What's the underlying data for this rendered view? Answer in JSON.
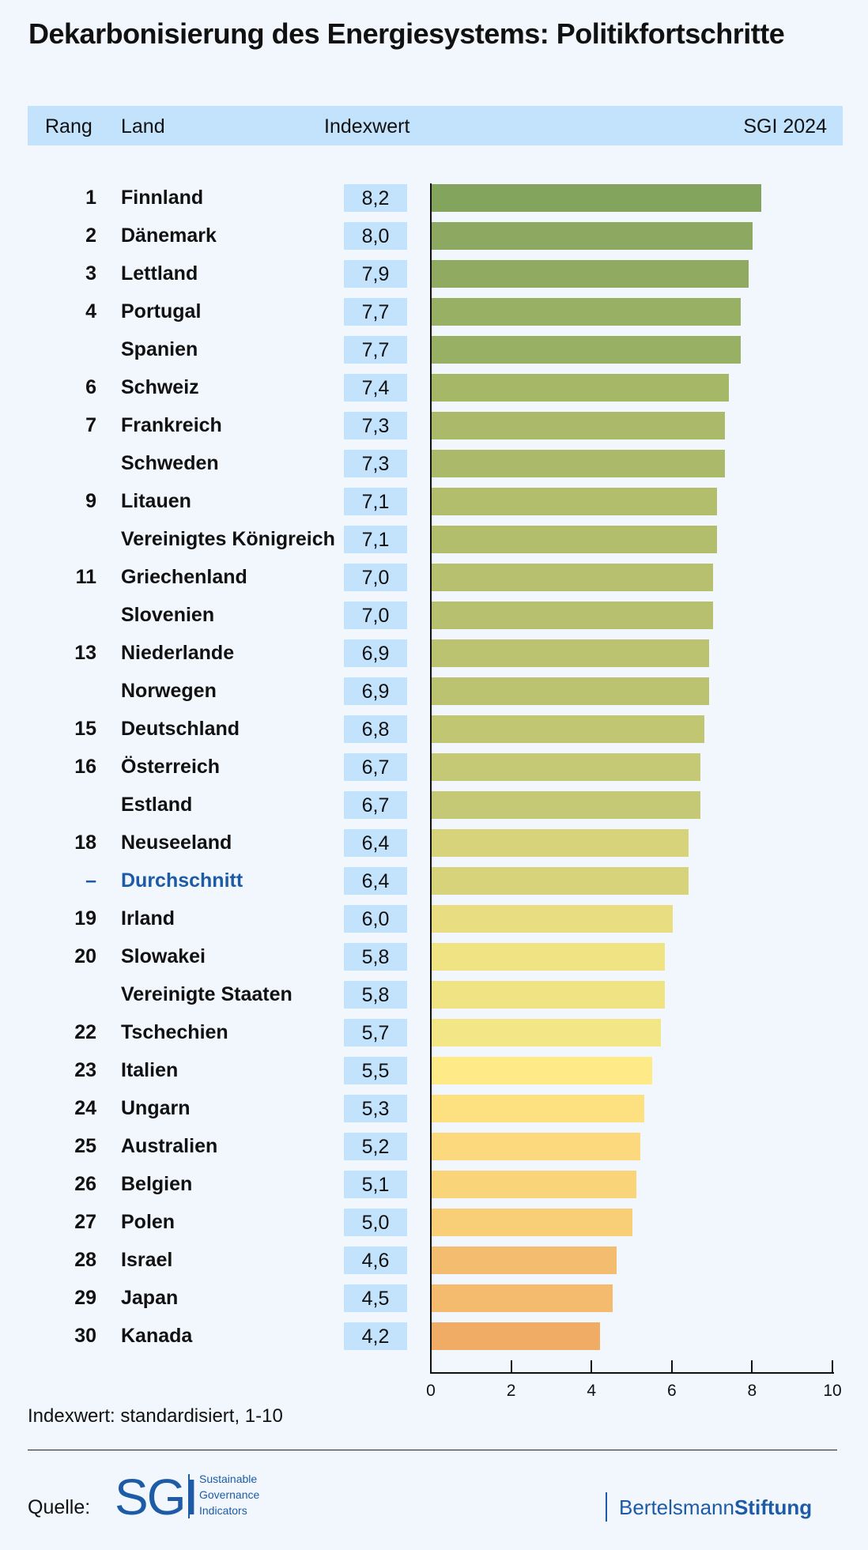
{
  "title": "Dekarbonisierung des Energiesystems: Politikfortschritte",
  "header": {
    "rank": "Rang",
    "land": "Land",
    "index": "Indexwert",
    "edition": "SGI 2024"
  },
  "chart_data": {
    "type": "bar",
    "orientation": "horizontal",
    "title": "Dekarbonisierung des Energiesystems: Politikfortschritte",
    "xlim": [
      0,
      10
    ],
    "xticks": [
      "0",
      "2",
      "4",
      "6",
      "8",
      "10"
    ],
    "note": "Indexwert: standardisiert, 1-10",
    "rows": [
      {
        "rank": "1",
        "name": "Finnland",
        "value": 8.2,
        "label": "8,2",
        "color": "#82a45c"
      },
      {
        "rank": "2",
        "name": "Dänemark",
        "value": 8.0,
        "label": "8,0",
        "color": "#8da860"
      },
      {
        "rank": "3",
        "name": "Lettland",
        "value": 7.9,
        "label": "7,9",
        "color": "#90aa61"
      },
      {
        "rank": "4",
        "name": "Portugal",
        "value": 7.7,
        "label": "7,7",
        "color": "#98b064"
      },
      {
        "rank": "",
        "name": "Spanien",
        "value": 7.7,
        "label": "7,7",
        "color": "#98b064"
      },
      {
        "rank": "6",
        "name": "Schweiz",
        "value": 7.4,
        "label": "7,4",
        "color": "#a6b868"
      },
      {
        "rank": "7",
        "name": "Frankreich",
        "value": 7.3,
        "label": "7,3",
        "color": "#abba6a"
      },
      {
        "rank": "",
        "name": "Schweden",
        "value": 7.3,
        "label": "7,3",
        "color": "#abba6a"
      },
      {
        "rank": "9",
        "name": "Litauen",
        "value": 7.1,
        "label": "7,1",
        "color": "#b3be6d"
      },
      {
        "rank": "",
        "name": "Vereinigtes Königreich",
        "value": 7.1,
        "label": "7,1",
        "color": "#b3be6d"
      },
      {
        "rank": "11",
        "name": "Griechenland",
        "value": 7.0,
        "label": "7,0",
        "color": "#b7c06e"
      },
      {
        "rank": "",
        "name": "Slovenien",
        "value": 7.0,
        "label": "7,0",
        "color": "#b7c06e"
      },
      {
        "rank": "13",
        "name": "Niederlande",
        "value": 6.9,
        "label": "6,9",
        "color": "#bbc370"
      },
      {
        "rank": "",
        "name": "Norwegen",
        "value": 6.9,
        "label": "6,9",
        "color": "#bbc370"
      },
      {
        "rank": "15",
        "name": "Deutschland",
        "value": 6.8,
        "label": "6,8",
        "color": "#c0c672"
      },
      {
        "rank": "16",
        "name": "Österreich",
        "value": 6.7,
        "label": "6,7",
        "color": "#c5c874"
      },
      {
        "rank": "",
        "name": "Estland",
        "value": 6.7,
        "label": "6,7",
        "color": "#c5c874"
      },
      {
        "rank": "18",
        "name": "Neuseeland",
        "value": 6.4,
        "label": "6,4",
        "color": "#d6d37a"
      },
      {
        "rank": "–",
        "name": "Durchschnitt",
        "value": 6.4,
        "label": "6,4",
        "color": "#d6d37a",
        "highlight": true
      },
      {
        "rank": "19",
        "name": "Irland",
        "value": 6.0,
        "label": "6,0",
        "color": "#e8dd80"
      },
      {
        "rank": "20",
        "name": "Slowakei",
        "value": 5.8,
        "label": "5,8",
        "color": "#f0e384"
      },
      {
        "rank": "",
        "name": "Vereinigte Staaten",
        "value": 5.8,
        "label": "5,8",
        "color": "#f0e384"
      },
      {
        "rank": "22",
        "name": "Tschechien",
        "value": 5.7,
        "label": "5,7",
        "color": "#f3e686"
      },
      {
        "rank": "23",
        "name": "Italien",
        "value": 5.5,
        "label": "5,5",
        "color": "#feea87"
      },
      {
        "rank": "24",
        "name": "Ungarn",
        "value": 5.3,
        "label": "5,3",
        "color": "#fde07f"
      },
      {
        "rank": "25",
        "name": "Australien",
        "value": 5.2,
        "label": "5,2",
        "color": "#fbd97c"
      },
      {
        "rank": "26",
        "name": "Belgien",
        "value": 5.1,
        "label": "5,1",
        "color": "#f9d479"
      },
      {
        "rank": "27",
        "name": "Polen",
        "value": 5.0,
        "label": "5,0",
        "color": "#f8cf77"
      },
      {
        "rank": "28",
        "name": "Israel",
        "value": 4.6,
        "label": "4,6",
        "color": "#f4bc6e"
      },
      {
        "rank": "29",
        "name": "Japan",
        "value": 4.5,
        "label": "4,5",
        "color": "#f4ba6e"
      },
      {
        "rank": "30",
        "name": "Kanada",
        "value": 4.2,
        "label": "4,2",
        "color": "#f0ab64"
      }
    ]
  },
  "footer": {
    "source_label": "Quelle:",
    "sgi_logo": "SGI",
    "sgi_lines": [
      "Sustainable",
      "Governance",
      "Indicators"
    ],
    "bs_regular": "Bertelsmann",
    "bs_bold": "Stiftung"
  },
  "colors": {
    "header_bg": "#c3e2fc",
    "highlight": "#1d5ba6",
    "background": "#f2f7fd"
  }
}
